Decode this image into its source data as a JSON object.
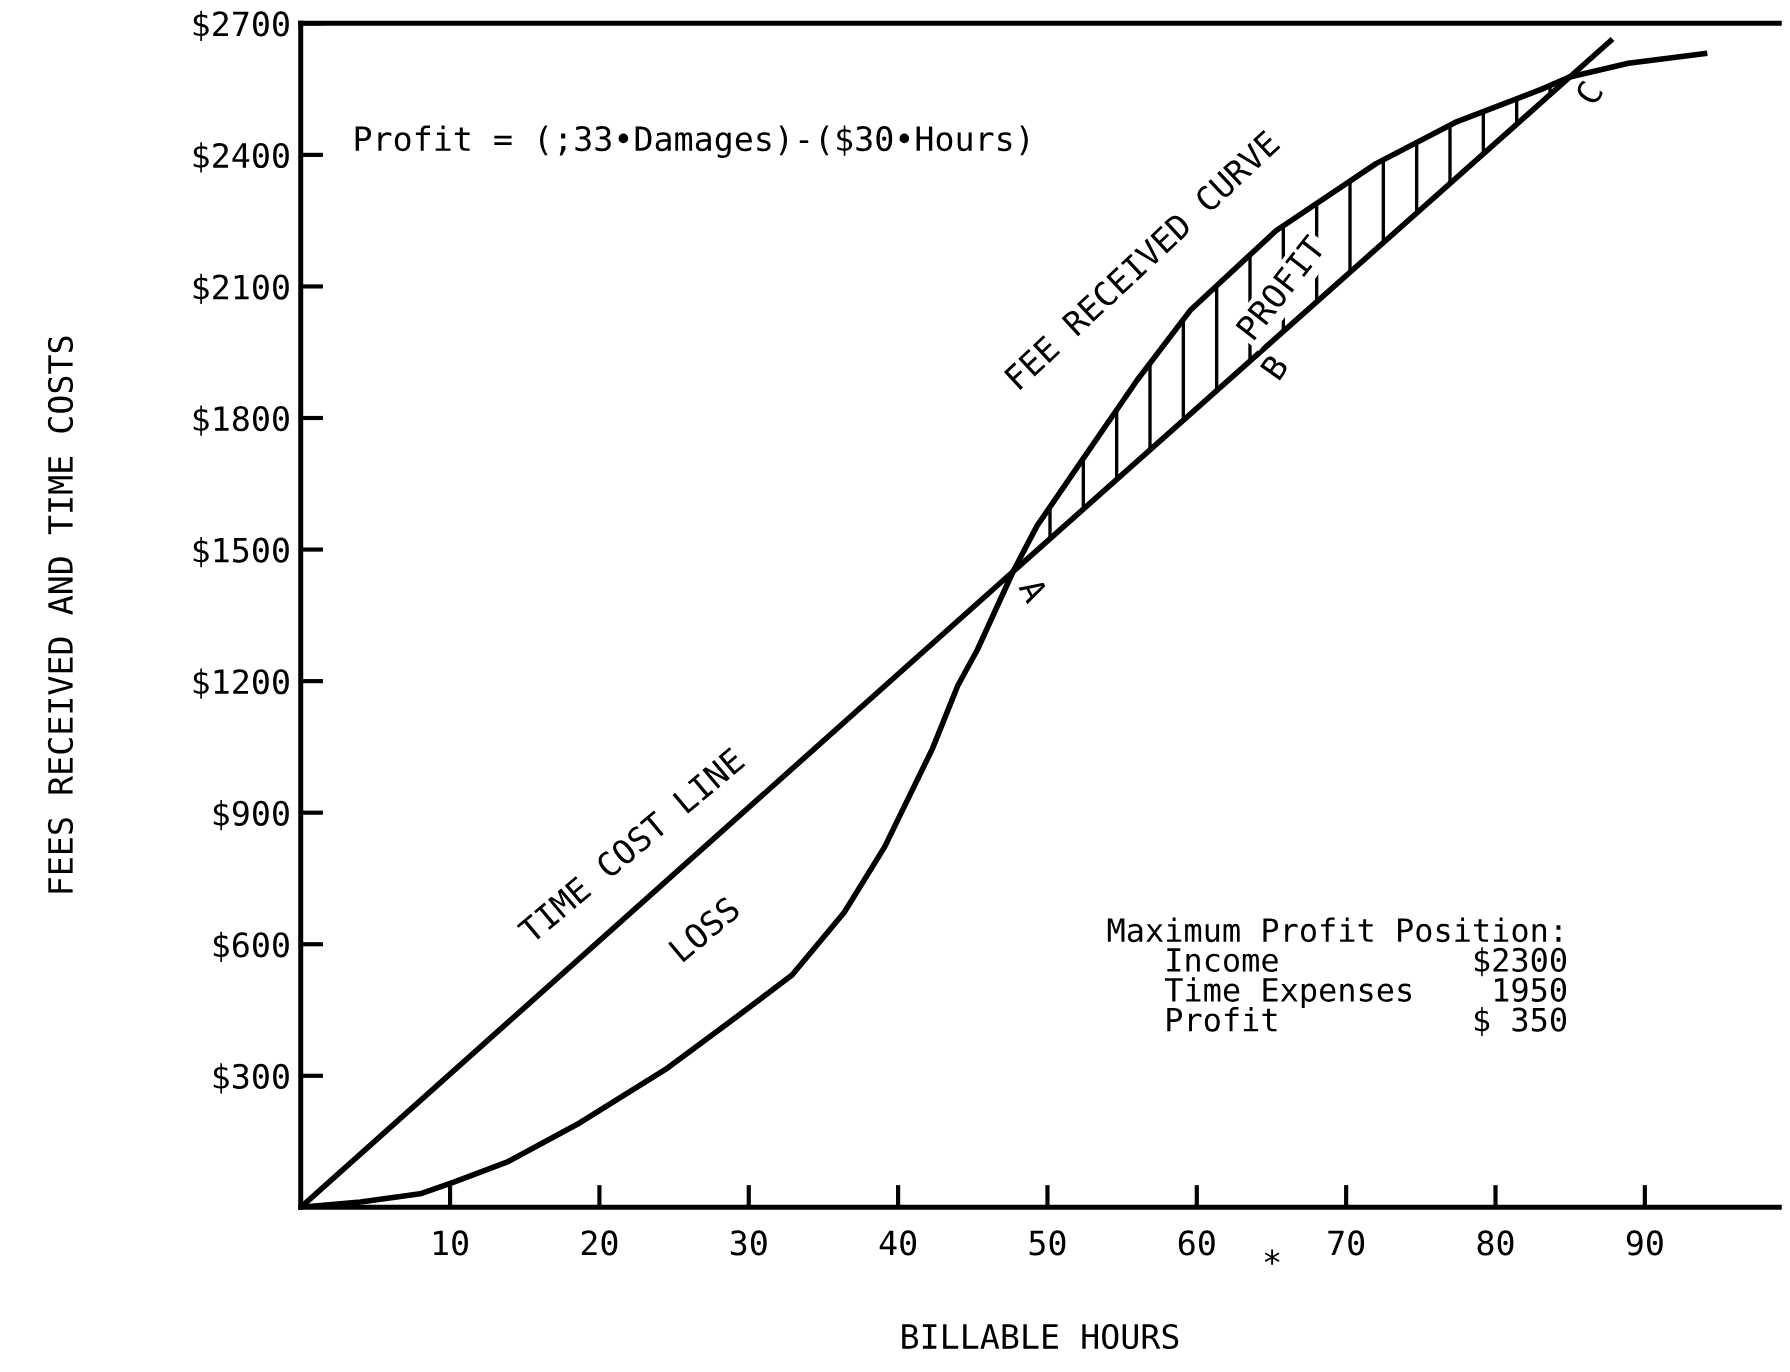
{
  "chart_data": {
    "type": "line",
    "xlabel": "BILLABLE HOURS",
    "ylabel": "FEES RECEIVED AND TIME COSTS",
    "xlim": [
      0,
      99
    ],
    "ylim": [
      0,
      2700
    ],
    "xticks": [
      10,
      20,
      30,
      40,
      50,
      60,
      70,
      80,
      90
    ],
    "yticks": [
      {
        "value": 300,
        "label": "$300"
      },
      {
        "value": 600,
        "label": "$600"
      },
      {
        "value": 900,
        "label": "$900"
      },
      {
        "value": 1200,
        "label": "$1200"
      },
      {
        "value": 1500,
        "label": "$1500"
      },
      {
        "value": 1800,
        "label": "$1800"
      },
      {
        "value": 2100,
        "label": "$2100"
      },
      {
        "value": 2400,
        "label": "$2400"
      },
      {
        "value": 2700,
        "label": "$2700"
      }
    ],
    "grid": false,
    "legend": false,
    "marker": "none",
    "line_style": "solid",
    "series": [
      {
        "color": "#000000",
        "x": [
          0,
          47.7,
          87.7
        ],
        "values": [
          0,
          1450,
          2660
        ]
      },
      {
        "color": "#000000",
        "x": [
          0,
          4,
          8,
          10.3,
          13.8,
          18.7,
          24.4,
          28.9,
          32.9,
          36.4,
          39.1,
          42.3,
          44,
          45.3,
          47.7,
          49.3,
          52,
          56,
          59.6,
          65.3,
          72,
          77.3,
          83.1,
          84.9,
          88.9,
          94
        ],
        "values": [
          0,
          12,
          31,
          58,
          103,
          193,
          314,
          427,
          530,
          673,
          822,
          1046,
          1190,
          1271,
          1450,
          1554,
          1688,
          1886,
          2047,
          2227,
          2380,
          2474,
          2550,
          2577,
          2609,
          2631
        ]
      }
    ],
    "annotations": [
      "Profit = (;33•Damages)-($30•Hours)",
      "FEE RECEIVED CURVE",
      "PROFIT",
      "B",
      "C",
      "A",
      "TIME COST LINE",
      "LOSS",
      "Maximum Profit Position:\n   Income          $2300\n   Time Expenses    1950\n   Profit          $ 350",
      "*"
    ]
  }
}
